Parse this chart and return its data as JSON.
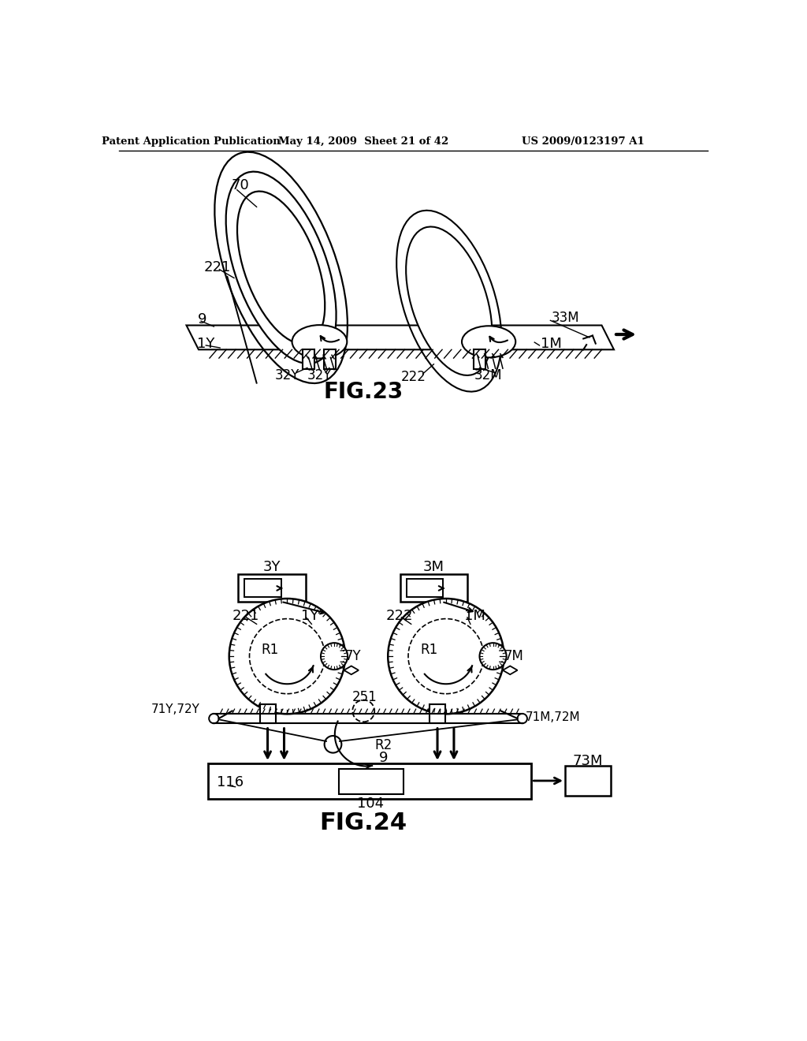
{
  "title_left": "Patent Application Publication",
  "title_mid": "May 14, 2009  Sheet 21 of 42",
  "title_right": "US 2009/0123197 A1",
  "fig23_caption": "FIG.23",
  "fig24_caption": "FIG.24",
  "bg_color": "#ffffff",
  "line_color": "#000000"
}
